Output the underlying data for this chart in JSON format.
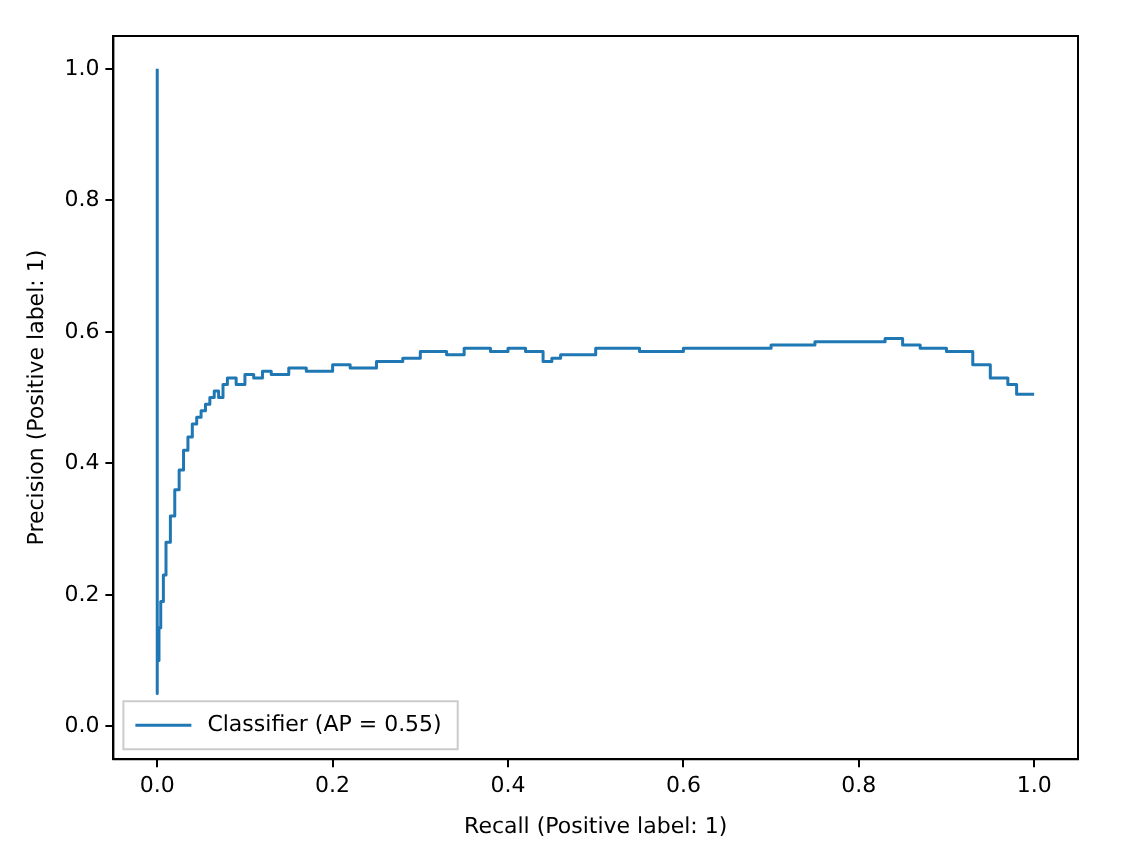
{
  "chart_data": {
    "type": "step",
    "xlabel": "Recall (Positive label: 1)",
    "ylabel": "Precision (Positive label: 1)",
    "xlim": [
      -0.05,
      1.05
    ],
    "ylim": [
      -0.05,
      1.05
    ],
    "xticks": [
      {
        "value": 0,
        "label": "0.0"
      },
      {
        "value": 0.2,
        "label": "0.2"
      },
      {
        "value": 0.4,
        "label": "0.4"
      },
      {
        "value": 0.6,
        "label": "0.6"
      },
      {
        "value": 0.8,
        "label": "0.8"
      },
      {
        "value": 1,
        "label": "1.0"
      }
    ],
    "yticks": [
      {
        "value": 0,
        "label": "0.0"
      },
      {
        "value": 0.2,
        "label": "0.2"
      },
      {
        "value": 0.4,
        "label": "0.4"
      },
      {
        "value": 0.6,
        "label": "0.6"
      },
      {
        "value": 0.8,
        "label": "0.8"
      },
      {
        "value": 1,
        "label": "1.0"
      }
    ],
    "grid": false,
    "legend": "bottom left",
    "marker": "none",
    "line_style": "solid",
    "series": [
      {
        "name": "Classifier (AP = 0.55)",
        "color": "#1f77b4",
        "x": [
          0,
          0,
          0.002,
          0.004,
          0.007,
          0.01,
          0.015,
          0.02,
          0.025,
          0.03,
          0.035,
          0.04,
          0.045,
          0.05,
          0.055,
          0.06,
          0.065,
          0.07,
          0.075,
          0.08,
          0.09,
          0.1,
          0.11,
          0.12,
          0.13,
          0.15,
          0.17,
          0.2,
          0.22,
          0.25,
          0.28,
          0.3,
          0.33,
          0.35,
          0.38,
          0.4,
          0.42,
          0.44,
          0.45,
          0.46,
          0.5,
          0.55,
          0.57,
          0.6,
          0.65,
          0.7,
          0.75,
          0.8,
          0.83,
          0.85,
          0.87,
          0.9,
          0.93,
          0.95,
          0.97,
          0.98,
          1.0
        ],
        "values": [
          1.0,
          0.05,
          0.1,
          0.15,
          0.19,
          0.23,
          0.28,
          0.32,
          0.36,
          0.39,
          0.42,
          0.44,
          0.46,
          0.47,
          0.48,
          0.49,
          0.5,
          0.51,
          0.5,
          0.52,
          0.53,
          0.52,
          0.535,
          0.53,
          0.54,
          0.535,
          0.545,
          0.54,
          0.55,
          0.545,
          0.555,
          0.56,
          0.57,
          0.565,
          0.575,
          0.57,
          0.575,
          0.57,
          0.555,
          0.56,
          0.565,
          0.575,
          0.57,
          0.57,
          0.575,
          0.575,
          0.58,
          0.585,
          0.585,
          0.59,
          0.58,
          0.575,
          0.57,
          0.55,
          0.53,
          0.52,
          0.505
        ]
      }
    ]
  }
}
